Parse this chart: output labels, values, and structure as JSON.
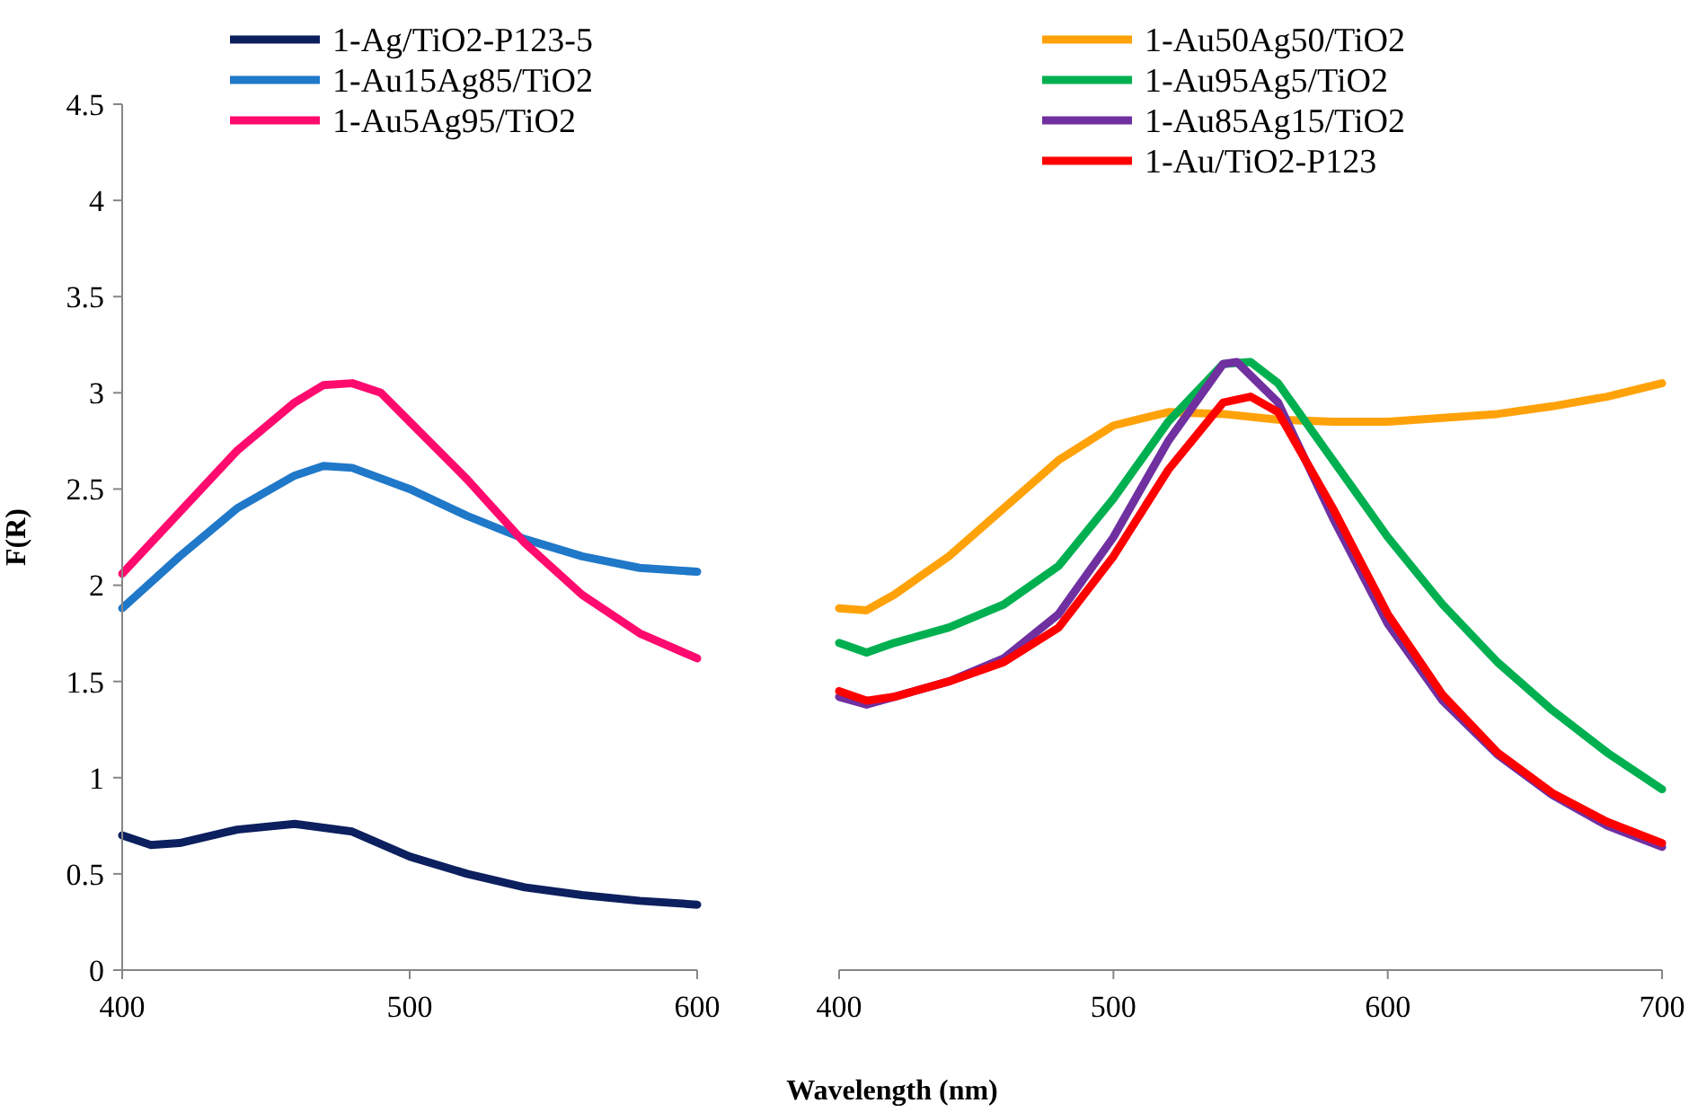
{
  "chart_data": [
    {
      "type": "line",
      "xlabel": "Wavelength (nm)",
      "ylabel": "F(R)",
      "xlim": [
        400,
        600
      ],
      "xticks": [
        400,
        500,
        600
      ],
      "ylim": [
        0,
        4.5
      ],
      "yticks": [
        0,
        0.5,
        1,
        1.5,
        2,
        2.5,
        3,
        3.5,
        4,
        4.5
      ],
      "legend": "top left",
      "series": [
        {
          "name": "1-Ag/TiO2-P123-5",
          "color": "#0c1f5e",
          "x": [
            400,
            410,
            420,
            440,
            460,
            480,
            500,
            520,
            540,
            560,
            580,
            600
          ],
          "values": [
            0.7,
            0.65,
            0.66,
            0.73,
            0.76,
            0.72,
            0.59,
            0.5,
            0.43,
            0.39,
            0.36,
            0.34
          ]
        },
        {
          "name": "1-Au15Ag85/TiO2",
          "color": "#1f78c8",
          "x": [
            400,
            420,
            440,
            460,
            470,
            480,
            500,
            520,
            540,
            560,
            580,
            600
          ],
          "values": [
            1.88,
            2.15,
            2.4,
            2.57,
            2.62,
            2.61,
            2.5,
            2.36,
            2.24,
            2.15,
            2.09,
            2.07
          ]
        },
        {
          "name": "1-Au5Ag95/TiO2",
          "color": "#ff0a6e",
          "x": [
            400,
            420,
            440,
            460,
            470,
            480,
            490,
            500,
            520,
            540,
            560,
            580,
            600
          ],
          "values": [
            2.06,
            2.38,
            2.7,
            2.95,
            3.04,
            3.05,
            3.0,
            2.85,
            2.55,
            2.22,
            1.95,
            1.75,
            1.62
          ]
        }
      ]
    },
    {
      "type": "line",
      "xlim": [
        400,
        700
      ],
      "xticks": [
        400,
        500,
        600,
        700
      ],
      "ylim": [
        0,
        4.5
      ],
      "tick_labels": "x",
      "legend": "top",
      "series": [
        {
          "name": "1-Au50Ag50/TiO2",
          "color": "#ffa20a",
          "x": [
            400,
            410,
            420,
            440,
            460,
            480,
            500,
            520,
            540,
            560,
            580,
            600,
            620,
            640,
            660,
            680,
            700
          ],
          "values": [
            1.88,
            1.87,
            1.95,
            2.15,
            2.4,
            2.65,
            2.83,
            2.9,
            2.89,
            2.86,
            2.85,
            2.85,
            2.87,
            2.89,
            2.93,
            2.98,
            3.05
          ]
        },
        {
          "name": "1-Au95Ag5/TiO2",
          "color": "#00b050",
          "x": [
            400,
            410,
            420,
            440,
            460,
            480,
            500,
            520,
            540,
            550,
            560,
            580,
            600,
            620,
            640,
            660,
            680,
            700
          ],
          "values": [
            1.7,
            1.65,
            1.7,
            1.78,
            1.9,
            2.1,
            2.45,
            2.85,
            3.15,
            3.16,
            3.05,
            2.65,
            2.25,
            1.9,
            1.6,
            1.35,
            1.13,
            0.94
          ]
        },
        {
          "name": "1-Au85Ag15/TiO2",
          "color": "#7030a0",
          "x": [
            400,
            410,
            420,
            440,
            460,
            480,
            500,
            520,
            540,
            545,
            560,
            580,
            600,
            620,
            640,
            660,
            680,
            700
          ],
          "values": [
            1.42,
            1.38,
            1.42,
            1.5,
            1.62,
            1.85,
            2.25,
            2.75,
            3.15,
            3.16,
            2.95,
            2.35,
            1.8,
            1.4,
            1.12,
            0.91,
            0.75,
            0.64
          ]
        },
        {
          "name": "1-Au/TiO2-P123",
          "color": "#ff0000",
          "x": [
            400,
            410,
            420,
            440,
            460,
            480,
            500,
            520,
            540,
            550,
            560,
            580,
            600,
            620,
            640,
            660,
            680,
            700
          ],
          "values": [
            1.45,
            1.4,
            1.42,
            1.5,
            1.6,
            1.78,
            2.15,
            2.6,
            2.95,
            2.98,
            2.9,
            2.4,
            1.85,
            1.43,
            1.13,
            0.92,
            0.77,
            0.66
          ]
        }
      ]
    }
  ]
}
